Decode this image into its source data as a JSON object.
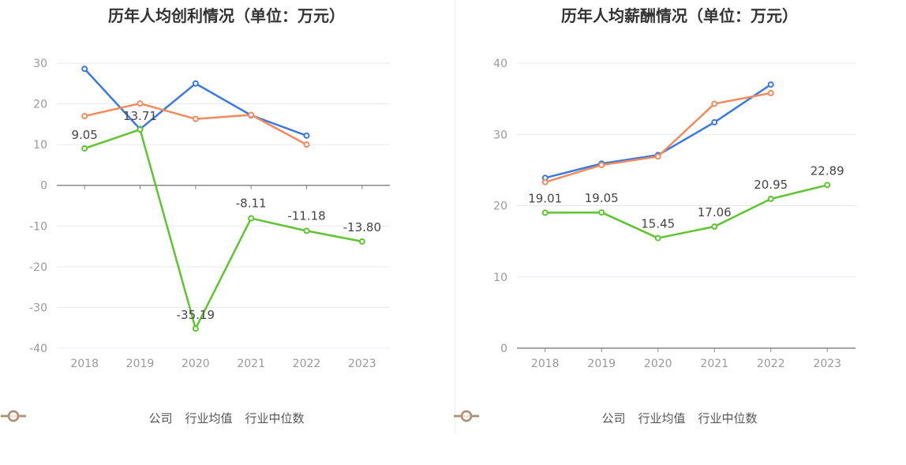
{
  "chart_data": [
    {
      "type": "line",
      "title": "历年人均创利情况（单位：万元）",
      "categories": [
        "2018",
        "2019",
        "2020",
        "2021",
        "2022",
        "2023"
      ],
      "ylim": [
        -40,
        30
      ],
      "yticks": [
        30,
        20,
        10,
        0,
        -10,
        -20,
        -30,
        -40
      ],
      "yticklabels": [
        "30",
        "20",
        "10",
        "0",
        "-10",
        "-20",
        "-30",
        "-40"
      ],
      "grid": true,
      "legend_position": "bottom",
      "series": [
        {
          "name": "公司",
          "color": "#5ec42f",
          "values": [
            9.05,
            13.71,
            -35.19,
            -8.11,
            -11.18,
            -13.8
          ],
          "labels": [
            "9.05",
            "13.71",
            "-35.19",
            "-8.11",
            "-11.18",
            "-13.80"
          ]
        },
        {
          "name": "行业均值",
          "color": "#3b78e0",
          "values": [
            28.6,
            13.8,
            25.0,
            17.2,
            12.2,
            null
          ],
          "labels": []
        },
        {
          "name": "行业中位数",
          "color": "#f18a5c",
          "values": [
            17.0,
            20.1,
            16.3,
            17.3,
            10.0,
            null
          ],
          "labels": []
        }
      ]
    },
    {
      "type": "line",
      "title": "历年人均薪酬情况（单位：万元）",
      "categories": [
        "2018",
        "2019",
        "2020",
        "2021",
        "2022",
        "2023"
      ],
      "ylim": [
        0,
        40
      ],
      "yticks": [
        40,
        30,
        20,
        10,
        0
      ],
      "yticklabels": [
        "40",
        "30",
        "20",
        "10",
        "0"
      ],
      "grid": true,
      "legend_position": "bottom",
      "series": [
        {
          "name": "公司",
          "color": "#5ec42f",
          "values": [
            19.01,
            19.05,
            15.45,
            17.06,
            20.95,
            22.89
          ],
          "labels": [
            "19.01",
            "19.05",
            "15.45",
            "17.06",
            "20.95",
            "22.89"
          ]
        },
        {
          "name": "行业均值",
          "color": "#3b78e0",
          "values": [
            23.9,
            25.9,
            27.1,
            31.7,
            37.0,
            null
          ],
          "labels": []
        },
        {
          "name": "行业中位数",
          "color": "#f18a5c",
          "values": [
            23.3,
            25.7,
            26.9,
            34.3,
            35.8,
            null
          ],
          "labels": []
        }
      ]
    }
  ]
}
